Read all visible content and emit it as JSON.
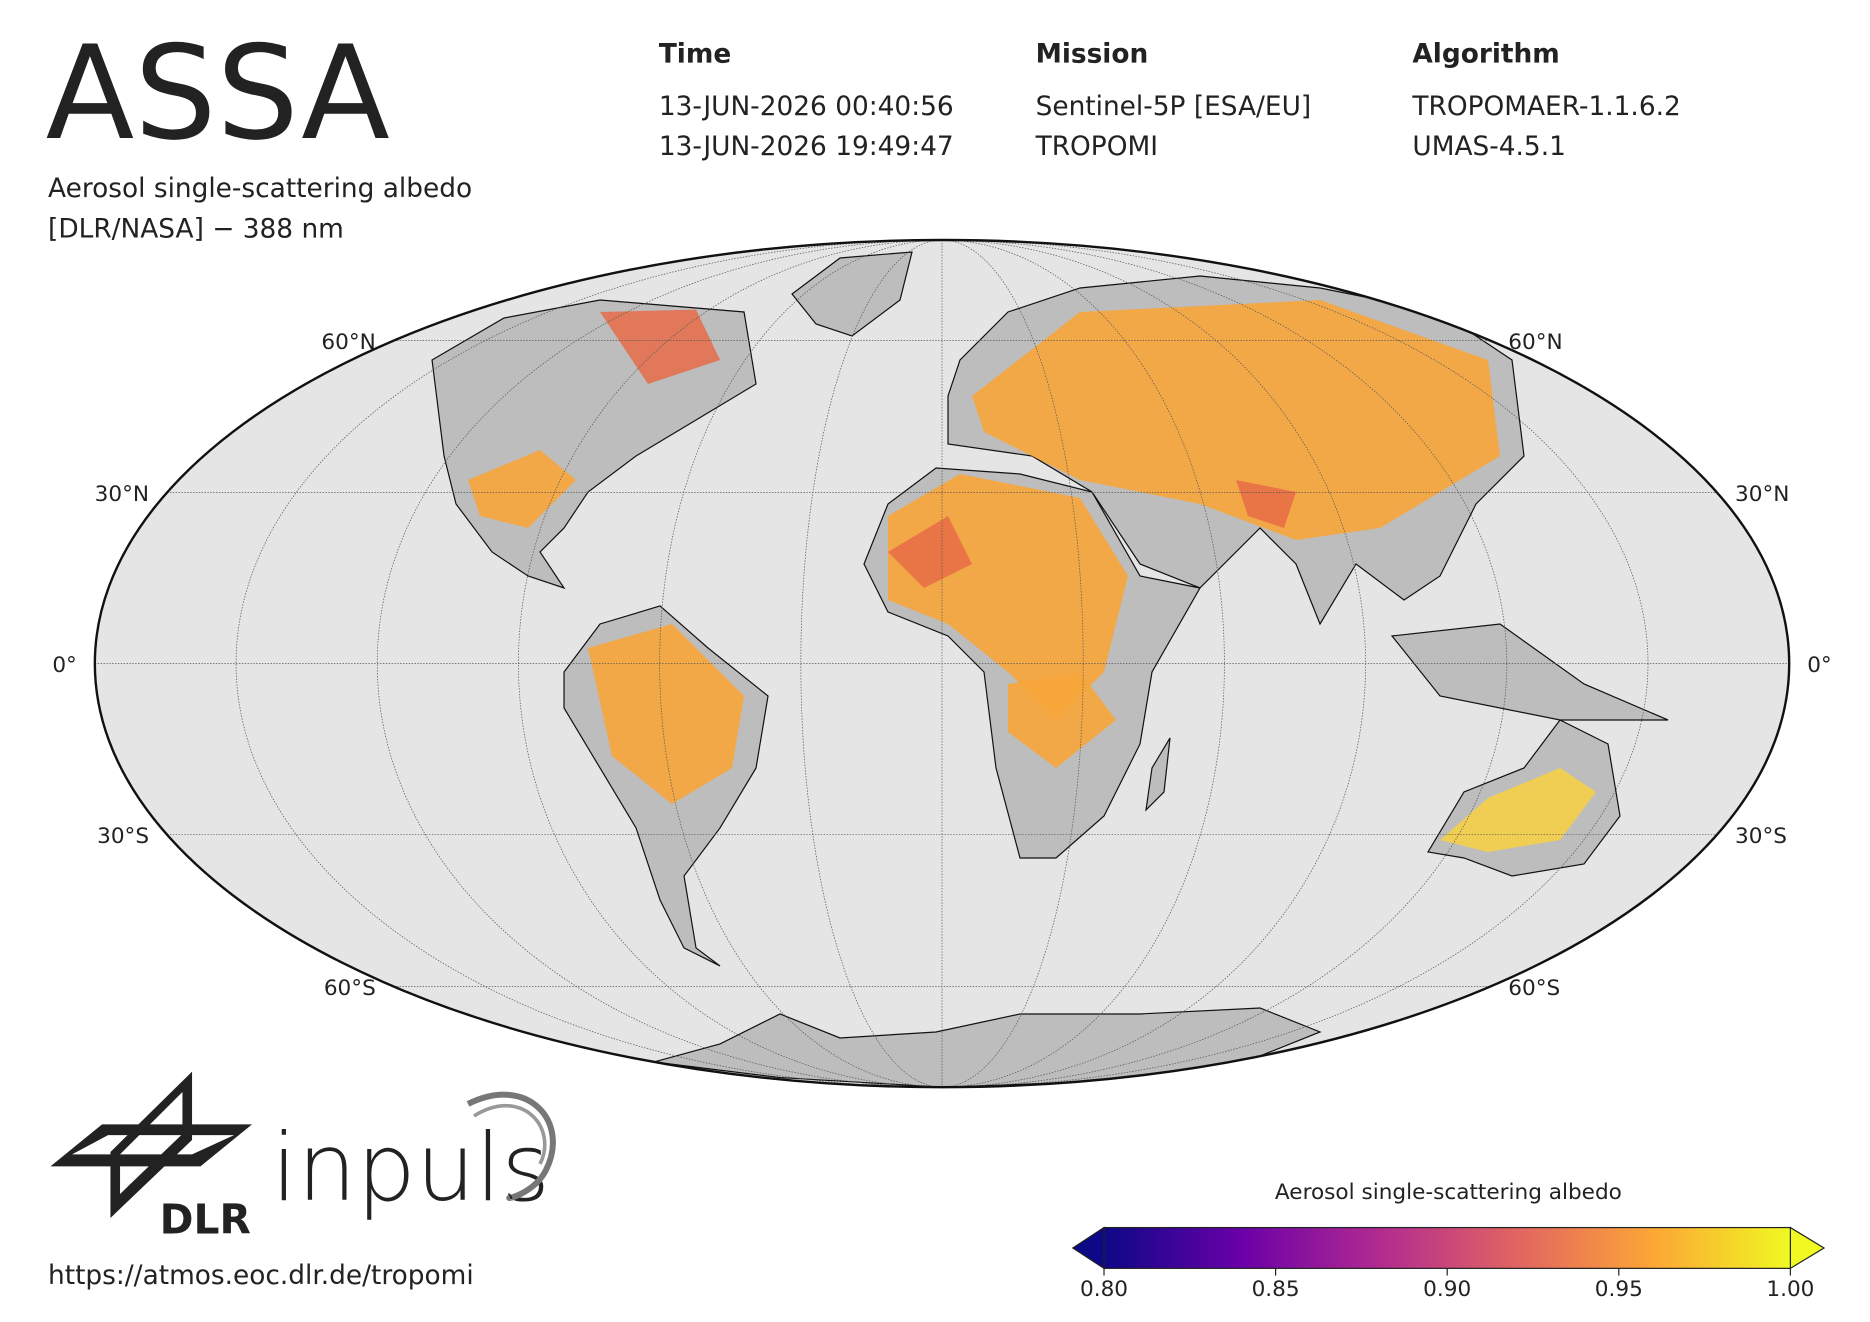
{
  "header": {
    "title": "ASSA",
    "subtitle": [
      "Aerosol single-scattering albedo",
      "[DLR/NASA] − 388 nm"
    ]
  },
  "info": {
    "columns": [
      {
        "heading": "Time",
        "lines": [
          "13-JUN-2026 00:40:56",
          "13-JUN-2026 19:49:47"
        ]
      },
      {
        "heading": "Mission",
        "lines": [
          "Sentinel-5P [ESA/EU]",
          "TROPOMI"
        ]
      },
      {
        "heading": "Algorithm",
        "lines": [
          "TROPOMAER-1.1.6.2",
          "UMAS-4.5.1"
        ]
      }
    ]
  },
  "map": {
    "lat_labels": [
      "60°N",
      "30°N",
      "0°",
      "30°S",
      "60°S"
    ]
  },
  "colorbar": {
    "label": "Aerosol single-scattering albedo",
    "lim": [
      0.8,
      1.0
    ],
    "ticks": [
      {
        "value": 0.8,
        "label": "0.80"
      },
      {
        "value": 0.85,
        "label": "0.85"
      },
      {
        "value": 0.9,
        "label": "0.90"
      },
      {
        "value": 0.95,
        "label": "0.95"
      },
      {
        "value": 1.0,
        "label": "1.00"
      }
    ],
    "colormap": [
      "#0d0887",
      "#6a00a8",
      "#b12a90",
      "#e16462",
      "#fca636",
      "#f0f921"
    ]
  },
  "footer": {
    "logo_text": "DLR",
    "brand": "inpuls",
    "url": "https://atmos.eoc.dlr.de/tropomi"
  }
}
